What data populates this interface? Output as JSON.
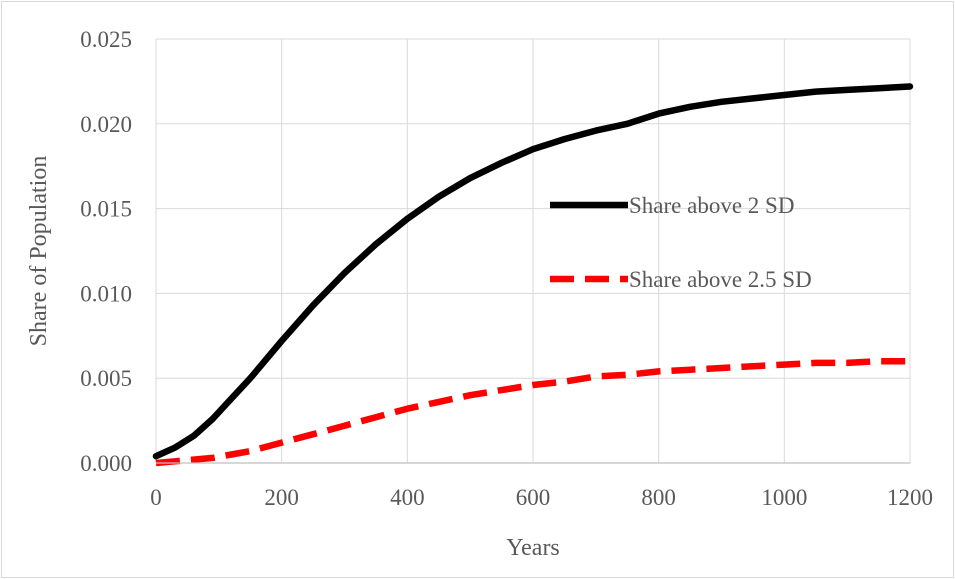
{
  "chart_data": {
    "type": "line",
    "title": "",
    "xlabel": "Years",
    "ylabel": "Share of Population",
    "xlim": [
      0,
      1200
    ],
    "ylim": [
      0,
      0.025
    ],
    "x_ticks": [
      "0",
      "200",
      "400",
      "600",
      "800",
      "1000",
      "1200"
    ],
    "y_ticks": [
      "0.000",
      "0.005",
      "0.010",
      "0.015",
      "0.020",
      "0.025"
    ],
    "grid": true,
    "legend_position": "right-middle",
    "x": [
      0,
      30,
      60,
      90,
      120,
      150,
      200,
      250,
      300,
      350,
      400,
      450,
      500,
      550,
      600,
      650,
      700,
      750,
      800,
      850,
      900,
      950,
      1000,
      1050,
      1100,
      1150,
      1200
    ],
    "series": [
      {
        "name": "Share above 2 SD",
        "color": "#000000",
        "dash": "solid",
        "values": [
          0.0004,
          0.0009,
          0.0016,
          0.0026,
          0.0038,
          0.005,
          0.0072,
          0.0093,
          0.0112,
          0.0129,
          0.0144,
          0.0157,
          0.0168,
          0.0177,
          0.0185,
          0.0191,
          0.0196,
          0.02,
          0.0206,
          0.021,
          0.0213,
          0.0215,
          0.0217,
          0.0219,
          0.022,
          0.0221,
          0.0222
        ]
      },
      {
        "name": "Share above 2.5 SD",
        "color": "#ff0000",
        "dash": "dashed",
        "values": [
          0.0,
          0.0001,
          0.0002,
          0.0003,
          0.0005,
          0.0007,
          0.0012,
          0.0017,
          0.0022,
          0.0027,
          0.0032,
          0.0036,
          0.004,
          0.0043,
          0.0046,
          0.0048,
          0.0051,
          0.0052,
          0.0054,
          0.0055,
          0.0056,
          0.0057,
          0.0058,
          0.0059,
          0.0059,
          0.006,
          0.006
        ]
      }
    ]
  }
}
